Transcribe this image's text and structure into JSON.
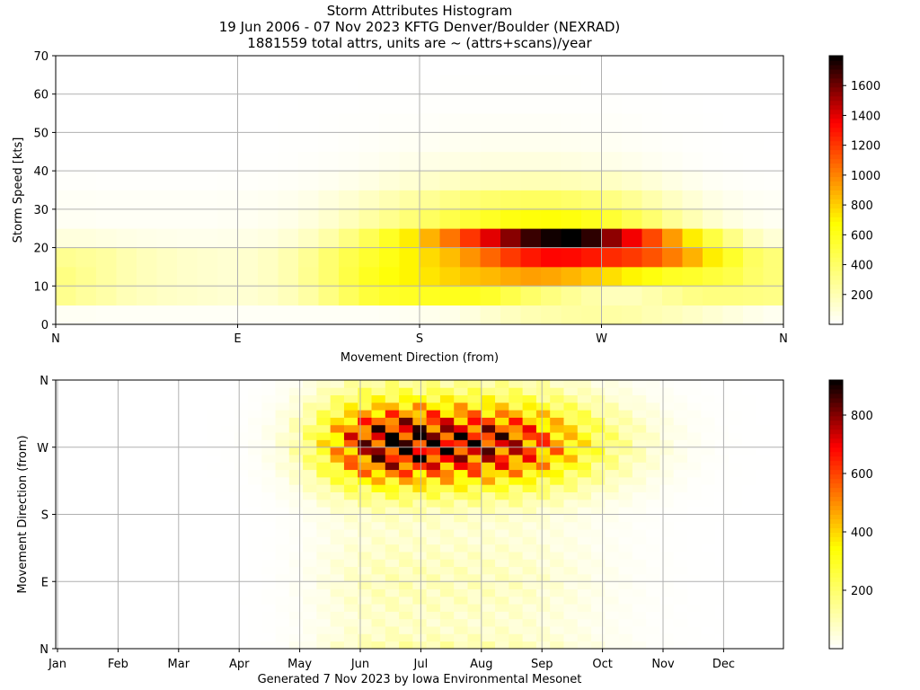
{
  "titles": [
    "Storm Attributes Histogram",
    "19 Jun 2006 - 07 Nov 2023 KFTG Denver/Boulder (NEXRAD)",
    "1881559 total attrs, units are ~ (attrs+scans)/year"
  ],
  "footer": "Generated 7 Nov 2023 by Iowa Environmental Mesonet",
  "chart_data": [
    {
      "type": "heatmap",
      "title": "Storm Attributes Histogram",
      "xlabel": "Movement Direction (from)",
      "ylabel": "Storm Speed [kts]",
      "x_ticks": [
        "N",
        "E",
        "S",
        "W",
        "N"
      ],
      "x_range_deg": [
        0,
        360
      ],
      "y_ticks": [
        "0",
        "10",
        "20",
        "30",
        "40",
        "50",
        "60",
        "70"
      ],
      "ylim": [
        0,
        70
      ],
      "colorbar_ticks": [
        "200",
        "400",
        "600",
        "800",
        "1000",
        "1200",
        "1400",
        "1600"
      ],
      "colorbar_range": [
        0,
        1800
      ],
      "colormap": "hot_r",
      "bins_dir": 36,
      "dir_bin_deg": 10,
      "speed_bins_kts": [
        "0-5",
        "5-10",
        "10-15",
        "15-20",
        "20-25",
        "25-30",
        "30-35",
        "35-40",
        "40-45",
        "45-50",
        "50-55",
        "55-60",
        "60-65",
        "65-70"
      ],
      "peak": {
        "direction": "W",
        "speed_kts": 20,
        "value": 1800
      },
      "values": [
        [
          30,
          30,
          25,
          25,
          25,
          25,
          25,
          25,
          25,
          25,
          25,
          25,
          25,
          25,
          25,
          25,
          30,
          35,
          50,
          60,
          90,
          130,
          170,
          200,
          220,
          240,
          250,
          240,
          230,
          200,
          180,
          150,
          120,
          90,
          60,
          40
        ],
        [
          300,
          260,
          230,
          190,
          170,
          150,
          140,
          130,
          120,
          120,
          140,
          180,
          240,
          330,
          430,
          520,
          560,
          580,
          590,
          600,
          600,
          560,
          480,
          400,
          340,
          280,
          230,
          180,
          180,
          220,
          270,
          320,
          340,
          340,
          330,
          320
        ],
        [
          330,
          290,
          250,
          210,
          180,
          160,
          140,
          130,
          120,
          130,
          160,
          210,
          290,
          380,
          490,
          590,
          650,
          700,
          740,
          790,
          830,
          860,
          900,
          930,
          910,
          870,
          820,
          760,
          700,
          640,
          580,
          560,
          520,
          480,
          400,
          360
        ],
        [
          290,
          270,
          250,
          210,
          180,
          160,
          140,
          130,
          120,
          130,
          160,
          210,
          280,
          380,
          470,
          550,
          620,
          700,
          770,
          850,
          960,
          1080,
          1200,
          1290,
          1340,
          1330,
          1290,
          1240,
          1200,
          1130,
          1020,
          880,
          720,
          560,
          420,
          360
        ],
        [
          90,
          90,
          80,
          70,
          60,
          55,
          50,
          50,
          55,
          65,
          80,
          110,
          160,
          230,
          330,
          450,
          580,
          720,
          880,
          1040,
          1210,
          1400,
          1560,
          1700,
          1770,
          1800,
          1720,
          1550,
          1370,
          1160,
          940,
          720,
          500,
          320,
          180,
          110
        ],
        [
          30,
          30,
          25,
          25,
          25,
          25,
          25,
          25,
          30,
          35,
          45,
          60,
          90,
          130,
          180,
          240,
          300,
          360,
          420,
          480,
          530,
          580,
          630,
          650,
          660,
          640,
          600,
          540,
          460,
          380,
          280,
          200,
          130,
          80,
          50,
          35
        ],
        [
          25,
          25,
          20,
          20,
          20,
          20,
          20,
          20,
          25,
          30,
          35,
          45,
          60,
          90,
          120,
          160,
          200,
          240,
          280,
          320,
          360,
          390,
          410,
          420,
          420,
          400,
          370,
          330,
          280,
          220,
          160,
          110,
          70,
          45,
          30,
          25
        ],
        [
          10,
          10,
          8,
          8,
          8,
          8,
          8,
          8,
          10,
          12,
          15,
          20,
          28,
          40,
          55,
          75,
          100,
          120,
          140,
          160,
          175,
          185,
          190,
          195,
          195,
          190,
          180,
          160,
          135,
          105,
          75,
          50,
          30,
          18,
          12,
          10
        ],
        [
          2,
          2,
          2,
          2,
          2,
          2,
          2,
          2,
          3,
          4,
          5,
          8,
          12,
          18,
          25,
          35,
          45,
          55,
          65,
          72,
          78,
          82,
          85,
          85,
          84,
          80,
          72,
          62,
          50,
          38,
          26,
          16,
          9,
          5,
          3,
          2
        ],
        [
          1,
          1,
          1,
          1,
          1,
          1,
          1,
          1,
          1,
          2,
          3,
          4,
          6,
          9,
          13,
          18,
          23,
          28,
          33,
          37,
          40,
          42,
          43,
          43,
          42,
          40,
          36,
          31,
          25,
          19,
          13,
          8,
          5,
          3,
          2,
          1
        ],
        [
          0,
          0,
          0,
          0,
          0,
          0,
          0,
          0,
          1,
          1,
          1,
          2,
          3,
          5,
          7,
          9,
          12,
          14,
          16,
          18,
          20,
          21,
          21,
          21,
          20,
          19,
          17,
          15,
          12,
          9,
          6,
          4,
          2,
          1,
          1,
          0
        ],
        [
          0,
          0,
          0,
          0,
          0,
          0,
          0,
          0,
          0,
          0,
          1,
          1,
          2,
          2,
          3,
          4,
          5,
          6,
          7,
          8,
          9,
          9,
          9,
          9,
          9,
          8,
          8,
          7,
          5,
          4,
          3,
          2,
          1,
          1,
          0,
          0
        ],
        [
          0,
          0,
          0,
          0,
          0,
          0,
          0,
          0,
          0,
          0,
          0,
          0,
          1,
          1,
          1,
          2,
          2,
          3,
          3,
          4,
          4,
          4,
          4,
          4,
          4,
          4,
          3,
          3,
          2,
          2,
          1,
          1,
          0,
          0,
          0,
          0
        ],
        [
          0,
          0,
          0,
          0,
          0,
          0,
          0,
          0,
          0,
          0,
          0,
          0,
          0,
          0,
          0,
          1,
          1,
          1,
          1,
          1,
          1,
          1,
          1,
          1,
          1,
          1,
          1,
          1,
          1,
          1,
          0,
          0,
          0,
          0,
          0,
          0
        ]
      ]
    },
    {
      "type": "heatmap",
      "xlabel": "",
      "ylabel": "Movement Direction (from)",
      "x_ticks": [
        "Jan",
        "Feb",
        "Mar",
        "Apr",
        "May",
        "Jun",
        "Jul",
        "Aug",
        "Sep",
        "Oct",
        "Nov",
        "Dec"
      ],
      "x_range_weeks": [
        0,
        53
      ],
      "y_ticks": [
        "N",
        "E",
        "S",
        "W",
        "N"
      ],
      "y_range_deg": [
        0,
        360
      ],
      "colorbar_ticks": [
        "200",
        "400",
        "600",
        "800"
      ],
      "colorbar_range": [
        0,
        920
      ],
      "colormap": "hot_r",
      "bins_week": 53,
      "bins_dir": 36,
      "peak": {
        "week": 31,
        "direction": "W",
        "value": 920
      }
    }
  ],
  "colors": {
    "grid": "#b0b0b0",
    "axes": "#000000",
    "background": "#ffffff",
    "colormap_stops": [
      "#ffffff",
      "#ffff00",
      "#ff0000",
      "#000000"
    ]
  }
}
